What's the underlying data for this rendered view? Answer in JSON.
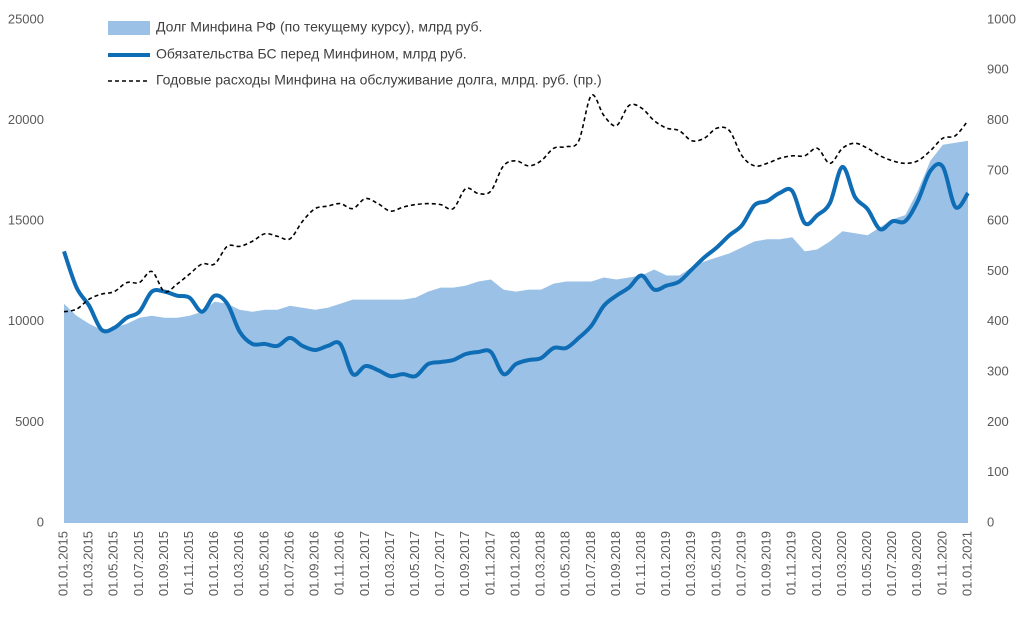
{
  "chart_data": {
    "type": "area_line",
    "categories": [
      "01.01.2015",
      null,
      "01.03.2015",
      null,
      "01.05.2015",
      null,
      "01.07.2015",
      null,
      "01.09.2015",
      null,
      "01.11.2015",
      null,
      "01.01.2016",
      null,
      "01.03.2016",
      null,
      "01.05.2016",
      null,
      "01.07.2016",
      null,
      "01.09.2016",
      null,
      "01.11.2016",
      null,
      "01.01.2017",
      null,
      "01.03.2017",
      null,
      "01.05.2017",
      null,
      "01.07.2017",
      null,
      "01.09.2017",
      null,
      "01.11.2017",
      null,
      "01.01.2018",
      null,
      "01.03.2018",
      null,
      "01.05.2018",
      null,
      "01.07.2018",
      null,
      "01.09.2018",
      null,
      "01.11.2018",
      null,
      "01.01.2019",
      null,
      "01.03.2019",
      null,
      "01.05.2019",
      null,
      "01.07.2019",
      null,
      "01.09.2019",
      null,
      "01.11.2019",
      null,
      "01.01.2020",
      null,
      "01.03.2020",
      null,
      "01.05.2020",
      null,
      "01.07.2020",
      null,
      "01.09.2020",
      null,
      "01.11.2020",
      null,
      "01.01.2021"
    ],
    "series": [
      {
        "name": "Долг Минфина РФ (по текущему курсу), млрд руб.",
        "kind": "area",
        "color": "#9bc2e6",
        "values": [
          10900,
          10300,
          9900,
          9600,
          9700,
          9900,
          10200,
          10300,
          10200,
          10200,
          10300,
          10500,
          11000,
          10900,
          10600,
          10500,
          10600,
          10600,
          10800,
          10700,
          10600,
          10700,
          10900,
          11100,
          11100,
          11100,
          11100,
          11100,
          11200,
          11500,
          11700,
          11700,
          11800,
          12000,
          12100,
          11600,
          11500,
          11600,
          11600,
          11900,
          12000,
          12000,
          12000,
          12200,
          12100,
          12200,
          12300,
          12600,
          12300,
          12300,
          12700,
          13000,
          13200,
          13400,
          13700,
          14000,
          14100,
          14100,
          14200,
          13500,
          13600,
          14000,
          14500,
          14400,
          14300,
          14700,
          15100,
          15300,
          16500,
          18000,
          18800,
          18900,
          19000
        ]
      },
      {
        "name": "Обязательства БС перед Минфином, млрд руб.",
        "kind": "line",
        "color": "#0f6db5",
        "values": [
          13500,
          11700,
          10800,
          9600,
          9700,
          10200,
          10500,
          11500,
          11500,
          11300,
          11200,
          10500,
          11300,
          10900,
          9500,
          8900,
          8900,
          8800,
          9200,
          8800,
          8600,
          8800,
          8900,
          7400,
          7800,
          7600,
          7300,
          7400,
          7300,
          7900,
          8000,
          8100,
          8400,
          8500,
          8500,
          7400,
          7900,
          8100,
          8200,
          8700,
          8700,
          9200,
          9800,
          10800,
          11300,
          11700,
          12300,
          11600,
          11800,
          12000,
          12600,
          13200,
          13700,
          14300,
          14800,
          15800,
          16000,
          16400,
          16500,
          14900,
          15300,
          15900,
          17700,
          16200,
          15600,
          14600,
          15000,
          15000,
          16000,
          17500,
          17700,
          15700,
          16400
        ]
      },
      {
        "name": "Годовые расходы Минфина на обслуживание долга, млрд. руб. (пр.)",
        "kind": "dashed",
        "color": "#000000",
        "axis": "y2",
        "values": [
          420,
          425,
          445,
          455,
          460,
          478,
          478,
          500,
          460,
          475,
          495,
          515,
          515,
          550,
          550,
          560,
          575,
          570,
          565,
          600,
          625,
          630,
          635,
          625,
          645,
          635,
          620,
          628,
          633,
          635,
          633,
          625,
          665,
          655,
          660,
          710,
          720,
          710,
          720,
          745,
          748,
          760,
          850,
          810,
          790,
          830,
          825,
          800,
          785,
          780,
          760,
          765,
          785,
          780,
          730,
          710,
          715,
          725,
          730,
          730,
          745,
          715,
          745,
          755,
          745,
          730,
          720,
          715,
          720,
          740,
          765,
          770,
          800
        ]
      }
    ],
    "ylim": [
      0,
      25000
    ],
    "yticks": [
      0,
      5000,
      10000,
      15000,
      20000,
      25000
    ],
    "y2lim": [
      0,
      1000
    ],
    "y2ticks": [
      0,
      100,
      200,
      300,
      400,
      500,
      600,
      700,
      800,
      900,
      1000
    ],
    "legend": "top-left"
  }
}
